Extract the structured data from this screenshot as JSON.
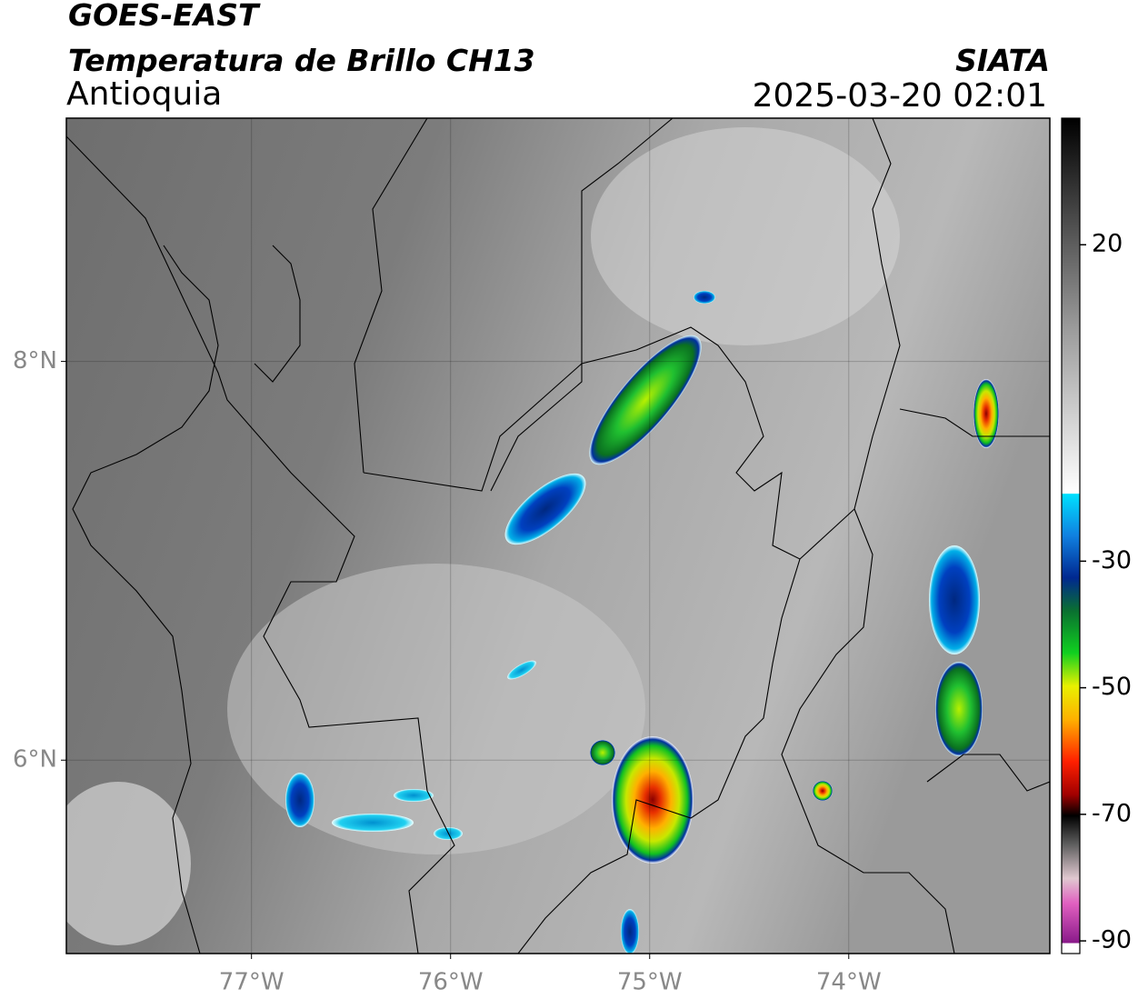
{
  "header": {
    "title": "GOES-EAST",
    "subtitle": "Temperatura de Brillo CH13",
    "region": "Antioquia",
    "source": "SIATA",
    "datetime": "2025-03-20 02:01"
  },
  "map": {
    "xlim": [
      -77.93,
      -72.99
    ],
    "ylim": [
      5.03,
      9.22
    ],
    "xticks": [
      {
        "value": -77,
        "label": "77°W"
      },
      {
        "value": -76,
        "label": "76°W"
      },
      {
        "value": -75,
        "label": "75°W"
      },
      {
        "value": -74,
        "label": "74°W"
      }
    ],
    "yticks": [
      {
        "value": 8,
        "label": "8°N"
      },
      {
        "value": 6,
        "label": "6°N"
      }
    ],
    "grid": true
  },
  "colorbar": {
    "clim": [
      -92,
      40
    ],
    "ticks": [
      20,
      -30,
      -50,
      -70,
      -90
    ]
  }
}
